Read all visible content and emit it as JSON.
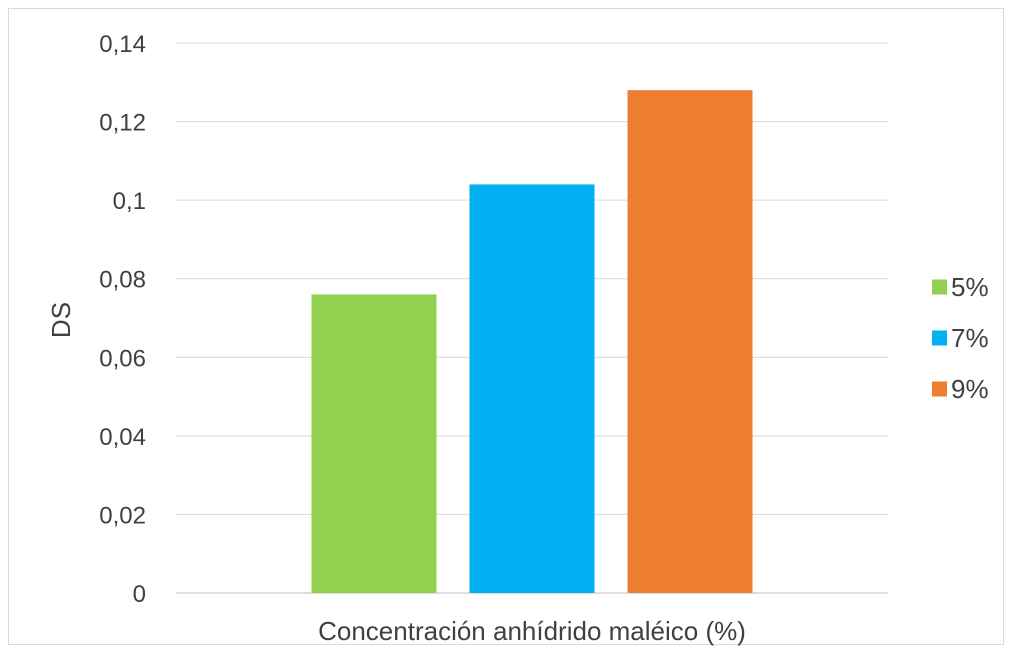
{
  "chart_data": {
    "type": "bar",
    "title": "",
    "xlabel": "Concentración anhídrido maléico (%)",
    "ylabel": "DS",
    "ylim": [
      0,
      0.14
    ],
    "yticks": [
      "0",
      "0,02",
      "0,04",
      "0,06",
      "0,08",
      "0,1",
      "0,12",
      "0,14"
    ],
    "grid": true,
    "legend_position": "right",
    "series": [
      {
        "name": "5%",
        "values": [
          0.076
        ],
        "color": "#92d050"
      },
      {
        "name": "7%",
        "values": [
          0.104
        ],
        "color": "#00b0f0"
      },
      {
        "name": "9%",
        "values": [
          0.128
        ],
        "color": "#ed7d31"
      }
    ]
  }
}
